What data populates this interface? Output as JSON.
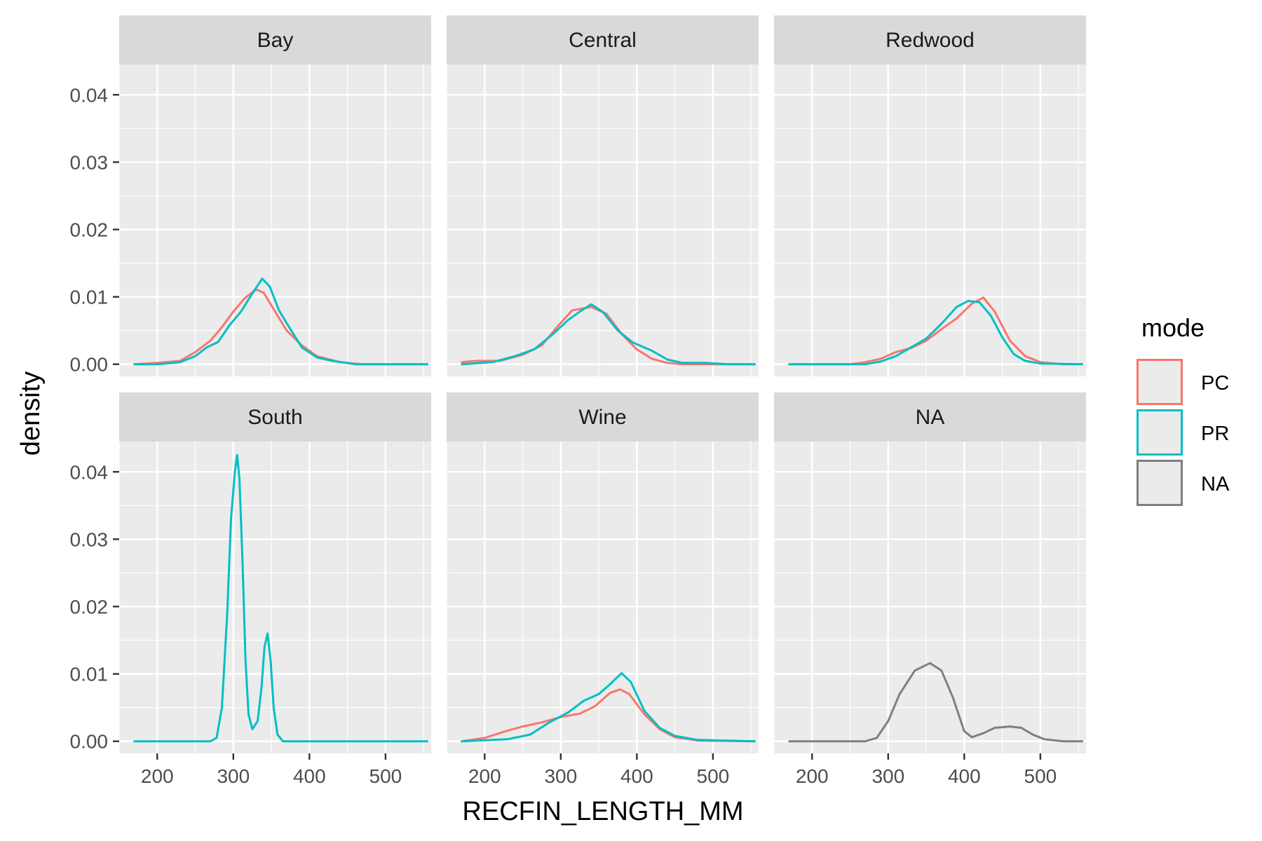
{
  "chart_data": {
    "type": "line",
    "subtype": "faceted-density",
    "xlabel": "RECFIN_LENGTH_MM",
    "ylabel": "density",
    "xlim": [
      150,
      560
    ],
    "ylim": [
      -0.0018,
      0.0445
    ],
    "x_ticks": [
      200,
      300,
      400,
      500
    ],
    "y_ticks": [
      0.0,
      0.01,
      0.02,
      0.03,
      0.04
    ],
    "y_tick_labels": [
      "0.00",
      "0.01",
      "0.02",
      "0.03",
      "0.04"
    ],
    "grid": true,
    "legend": {
      "title": "mode",
      "position": "right",
      "entries": [
        {
          "label": "PC",
          "color": "#F8766D"
        },
        {
          "label": "PR",
          "color": "#00BFC4"
        },
        {
          "label": "NA",
          "color": "#7F7F7F"
        }
      ]
    },
    "facets": [
      {
        "name": "Bay",
        "series": [
          {
            "name": "PC",
            "points": [
              [
                170,
                0
              ],
              [
                200,
                0.0002
              ],
              [
                230,
                0.0005
              ],
              [
                250,
                0.0018
              ],
              [
                270,
                0.0035
              ],
              [
                285,
                0.0055
              ],
              [
                300,
                0.0078
              ],
              [
                315,
                0.0098
              ],
              [
                330,
                0.0111
              ],
              [
                340,
                0.0106
              ],
              [
                355,
                0.0078
              ],
              [
                370,
                0.005
              ],
              [
                390,
                0.0028
              ],
              [
                410,
                0.0012
              ],
              [
                440,
                0.0003
              ],
              [
                470,
                0
              ],
              [
                555,
                0
              ]
            ]
          },
          {
            "name": "PR",
            "points": [
              [
                170,
                0
              ],
              [
                200,
                0
              ],
              [
                230,
                0.0003
              ],
              [
                250,
                0.0012
              ],
              [
                265,
                0.0025
              ],
              [
                280,
                0.0033
              ],
              [
                295,
                0.0058
              ],
              [
                310,
                0.0078
              ],
              [
                325,
                0.0105
              ],
              [
                338,
                0.0127
              ],
              [
                348,
                0.0115
              ],
              [
                360,
                0.008
              ],
              [
                375,
                0.0052
              ],
              [
                390,
                0.0025
              ],
              [
                410,
                0.001
              ],
              [
                430,
                0.0005
              ],
              [
                460,
                0
              ],
              [
                555,
                0
              ]
            ]
          }
        ]
      },
      {
        "name": "Central",
        "series": [
          {
            "name": "PC",
            "points": [
              [
                170,
                0.0003
              ],
              [
                190,
                0.0005
              ],
              [
                220,
                0.0005
              ],
              [
                250,
                0.0014
              ],
              [
                275,
                0.0028
              ],
              [
                295,
                0.0055
              ],
              [
                315,
                0.008
              ],
              [
                340,
                0.0085
              ],
              [
                360,
                0.0075
              ],
              [
                380,
                0.0045
              ],
              [
                400,
                0.0022
              ],
              [
                420,
                0.0008
              ],
              [
                440,
                0.0002
              ],
              [
                460,
                0
              ],
              [
                555,
                0
              ]
            ]
          },
          {
            "name": "PR",
            "points": [
              [
                170,
                0
              ],
              [
                210,
                0.0003
              ],
              [
                240,
                0.0012
              ],
              [
                265,
                0.0022
              ],
              [
                290,
                0.0045
              ],
              [
                310,
                0.0066
              ],
              [
                325,
                0.0078
              ],
              [
                340,
                0.0089
              ],
              [
                355,
                0.0078
              ],
              [
                375,
                0.005
              ],
              [
                395,
                0.0032
              ],
              [
                420,
                0.002
              ],
              [
                440,
                0.0007
              ],
              [
                460,
                0.0002
              ],
              [
                490,
                0.0002
              ],
              [
                520,
                0
              ],
              [
                555,
                0
              ]
            ]
          }
        ]
      },
      {
        "name": "Redwood",
        "series": [
          {
            "name": "PC",
            "points": [
              [
                170,
                0
              ],
              [
                250,
                0
              ],
              [
                270,
                0.0003
              ],
              [
                290,
                0.0008
              ],
              [
                310,
                0.0018
              ],
              [
                330,
                0.0024
              ],
              [
                350,
                0.0035
              ],
              [
                370,
                0.0052
              ],
              [
                390,
                0.0068
              ],
              [
                410,
                0.009
              ],
              [
                425,
                0.0099
              ],
              [
                440,
                0.0078
              ],
              [
                460,
                0.0035
              ],
              [
                480,
                0.0012
              ],
              [
                500,
                0.0003
              ],
              [
                530,
                0
              ],
              [
                555,
                0
              ]
            ]
          },
          {
            "name": "PR",
            "points": [
              [
                170,
                0
              ],
              [
                270,
                0
              ],
              [
                290,
                0.0004
              ],
              [
                310,
                0.0012
              ],
              [
                330,
                0.0025
              ],
              [
                350,
                0.0038
              ],
              [
                370,
                0.006
              ],
              [
                390,
                0.0085
              ],
              [
                405,
                0.0094
              ],
              [
                420,
                0.0092
              ],
              [
                435,
                0.0072
              ],
              [
                450,
                0.004
              ],
              [
                465,
                0.0015
              ],
              [
                480,
                0.0005
              ],
              [
                500,
                0.0001
              ],
              [
                555,
                0
              ]
            ]
          }
        ]
      },
      {
        "name": "South",
        "series": [
          {
            "name": "PR",
            "points": [
              [
                170,
                0
              ],
              [
                270,
                0
              ],
              [
                278,
                0.0005
              ],
              [
                285,
                0.005
              ],
              [
                292,
                0.019
              ],
              [
                297,
                0.033
              ],
              [
                302,
                0.04
              ],
              [
                305,
                0.0425
              ],
              [
                308,
                0.039
              ],
              [
                312,
                0.027
              ],
              [
                316,
                0.012
              ],
              [
                320,
                0.004
              ],
              [
                325,
                0.0018
              ],
              [
                332,
                0.003
              ],
              [
                337,
                0.008
              ],
              [
                341,
                0.014
              ],
              [
                345,
                0.016
              ],
              [
                349,
                0.012
              ],
              [
                353,
                0.005
              ],
              [
                358,
                0.001
              ],
              [
                365,
                0
              ],
              [
                555,
                0
              ]
            ]
          }
        ]
      },
      {
        "name": "Wine",
        "series": [
          {
            "name": "PC",
            "points": [
              [
                170,
                0
              ],
              [
                200,
                0.0005
              ],
              [
                225,
                0.0014
              ],
              [
                250,
                0.0022
              ],
              [
                275,
                0.0028
              ],
              [
                300,
                0.0036
              ],
              [
                325,
                0.0041
              ],
              [
                345,
                0.0052
              ],
              [
                365,
                0.0072
              ],
              [
                378,
                0.0077
              ],
              [
                390,
                0.007
              ],
              [
                410,
                0.004
              ],
              [
                430,
                0.0018
              ],
              [
                450,
                0.0006
              ],
              [
                480,
                0.0001
              ],
              [
                555,
                0
              ]
            ]
          },
          {
            "name": "PR",
            "points": [
              [
                170,
                0
              ],
              [
                230,
                0.0003
              ],
              [
                260,
                0.001
              ],
              [
                285,
                0.0028
              ],
              [
                310,
                0.0043
              ],
              [
                330,
                0.006
              ],
              [
                350,
                0.007
              ],
              [
                365,
                0.0085
              ],
              [
                380,
                0.0101
              ],
              [
                392,
                0.0088
              ],
              [
                410,
                0.0045
              ],
              [
                430,
                0.002
              ],
              [
                450,
                0.0008
              ],
              [
                480,
                0.0002
              ],
              [
                555,
                0
              ]
            ]
          }
        ]
      },
      {
        "name": "NA",
        "series": [
          {
            "name": "NA",
            "points": [
              [
                170,
                0
              ],
              [
                270,
                0
              ],
              [
                285,
                0.0005
              ],
              [
                300,
                0.003
              ],
              [
                315,
                0.007
              ],
              [
                335,
                0.0105
              ],
              [
                355,
                0.0116
              ],
              [
                370,
                0.0105
              ],
              [
                385,
                0.0065
              ],
              [
                400,
                0.0015
              ],
              [
                410,
                0.0006
              ],
              [
                425,
                0.0012
              ],
              [
                440,
                0.002
              ],
              [
                460,
                0.0022
              ],
              [
                475,
                0.002
              ],
              [
                490,
                0.001
              ],
              [
                505,
                0.0003
              ],
              [
                530,
                0
              ],
              [
                555,
                0
              ]
            ]
          }
        ]
      }
    ]
  }
}
